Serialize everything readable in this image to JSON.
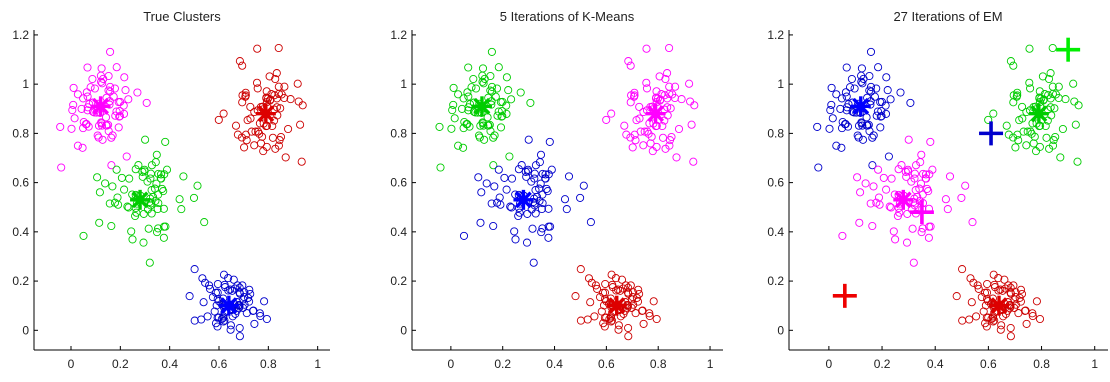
{
  "chart_data": [
    {
      "type": "scatter",
      "title": "True Clusters",
      "xlim": [
        -0.15,
        1.05
      ],
      "ylim": [
        -0.08,
        1.22
      ],
      "xticks": [
        "0",
        "0.2",
        "0.4",
        "0.6",
        "0.8",
        "1"
      ],
      "yticks": [
        "0",
        "0.2",
        "0.4",
        "0.6",
        "0.8",
        "1",
        "1.2"
      ],
      "grid": false,
      "series": [
        {
          "color": "#ff00ff",
          "center": [
            0.12,
            0.91
          ],
          "spread": [
            0.08,
            0.09
          ],
          "count": 80,
          "marker": "circle"
        },
        {
          "color": "#cc0000",
          "center": [
            0.79,
            0.88
          ],
          "spread": [
            0.08,
            0.1
          ],
          "count": 80,
          "marker": "circle"
        },
        {
          "color": "#00cc00",
          "center": [
            0.28,
            0.53
          ],
          "spread": [
            0.09,
            0.09
          ],
          "count": 80,
          "marker": "circle"
        },
        {
          "color": "#0000cc",
          "center": [
            0.64,
            0.1
          ],
          "spread": [
            0.07,
            0.06
          ],
          "count": 80,
          "marker": "circle"
        }
      ],
      "centers": [
        {
          "color": "#ff00ff",
          "x": 0.12,
          "y": 0.91,
          "marker": "asterisk"
        },
        {
          "color": "#dd0000",
          "x": 0.79,
          "y": 0.88,
          "marker": "asterisk"
        },
        {
          "color": "#00cc00",
          "x": 0.28,
          "y": 0.53,
          "marker": "asterisk"
        },
        {
          "color": "#0000ff",
          "x": 0.64,
          "y": 0.1,
          "marker": "asterisk"
        }
      ]
    },
    {
      "type": "scatter",
      "title": "5 Iterations of K-Means",
      "xlim": [
        -0.15,
        1.05
      ],
      "ylim": [
        -0.08,
        1.22
      ],
      "xticks": [
        "0",
        "0.2",
        "0.4",
        "0.6",
        "0.8",
        "1"
      ],
      "yticks": [
        "0",
        "0.2",
        "0.4",
        "0.6",
        "0.8",
        "1",
        "1.2"
      ],
      "grid": false,
      "series": [
        {
          "color": "#00cc00",
          "center": [
            0.12,
            0.91
          ],
          "spread": [
            0.08,
            0.09
          ],
          "count": 80,
          "marker": "circle"
        },
        {
          "color": "#ff00ff",
          "center": [
            0.79,
            0.88
          ],
          "spread": [
            0.08,
            0.1
          ],
          "count": 80,
          "marker": "circle"
        },
        {
          "color": "#0000cc",
          "center": [
            0.28,
            0.53
          ],
          "spread": [
            0.09,
            0.09
          ],
          "count": 80,
          "marker": "circle"
        },
        {
          "color": "#cc0000",
          "center": [
            0.64,
            0.1
          ],
          "spread": [
            0.07,
            0.06
          ],
          "count": 80,
          "marker": "circle"
        }
      ],
      "centers": [
        {
          "color": "#00cc00",
          "x": 0.12,
          "y": 0.91,
          "marker": "asterisk"
        },
        {
          "color": "#ff00ff",
          "x": 0.79,
          "y": 0.88,
          "marker": "asterisk"
        },
        {
          "color": "#0000ff",
          "x": 0.28,
          "y": 0.53,
          "marker": "asterisk"
        },
        {
          "color": "#dd0000",
          "x": 0.64,
          "y": 0.1,
          "marker": "asterisk"
        }
      ]
    },
    {
      "type": "scatter",
      "title": "27 Iterations of EM",
      "xlim": [
        -0.15,
        1.05
      ],
      "ylim": [
        -0.08,
        1.22
      ],
      "xticks": [
        "0",
        "0.2",
        "0.4",
        "0.6",
        "0.8",
        "1"
      ],
      "yticks": [
        "0",
        "0.2",
        "0.4",
        "0.6",
        "0.8",
        "1",
        "1.2"
      ],
      "grid": false,
      "series": [
        {
          "color": "#0000cc",
          "center": [
            0.12,
            0.91
          ],
          "spread": [
            0.08,
            0.09
          ],
          "count": 80,
          "marker": "circle"
        },
        {
          "color": "#00cc00",
          "center": [
            0.79,
            0.88
          ],
          "spread": [
            0.08,
            0.1
          ],
          "count": 80,
          "marker": "circle"
        },
        {
          "color": "#ff00ff",
          "center": [
            0.28,
            0.53
          ],
          "spread": [
            0.09,
            0.09
          ],
          "count": 80,
          "marker": "circle"
        },
        {
          "color": "#cc0000",
          "center": [
            0.64,
            0.1
          ],
          "spread": [
            0.07,
            0.06
          ],
          "count": 80,
          "marker": "circle"
        }
      ],
      "centers": [
        {
          "color": "#0000ff",
          "x": 0.12,
          "y": 0.91,
          "marker": "asterisk"
        },
        {
          "color": "#00cc00",
          "x": 0.79,
          "y": 0.88,
          "marker": "asterisk"
        },
        {
          "color": "#ff00ff",
          "x": 0.28,
          "y": 0.53,
          "marker": "asterisk"
        },
        {
          "color": "#dd0000",
          "x": 0.64,
          "y": 0.1,
          "marker": "asterisk"
        },
        {
          "color": "#0000cc",
          "x": 0.61,
          "y": 0.8,
          "marker": "plus"
        },
        {
          "color": "#00ee00",
          "x": 0.9,
          "y": 1.14,
          "marker": "plus"
        },
        {
          "color": "#ff00ff",
          "x": 0.35,
          "y": 0.48,
          "marker": "plus"
        },
        {
          "color": "#ee0000",
          "x": 0.06,
          "y": 0.14,
          "marker": "plus"
        }
      ]
    }
  ]
}
